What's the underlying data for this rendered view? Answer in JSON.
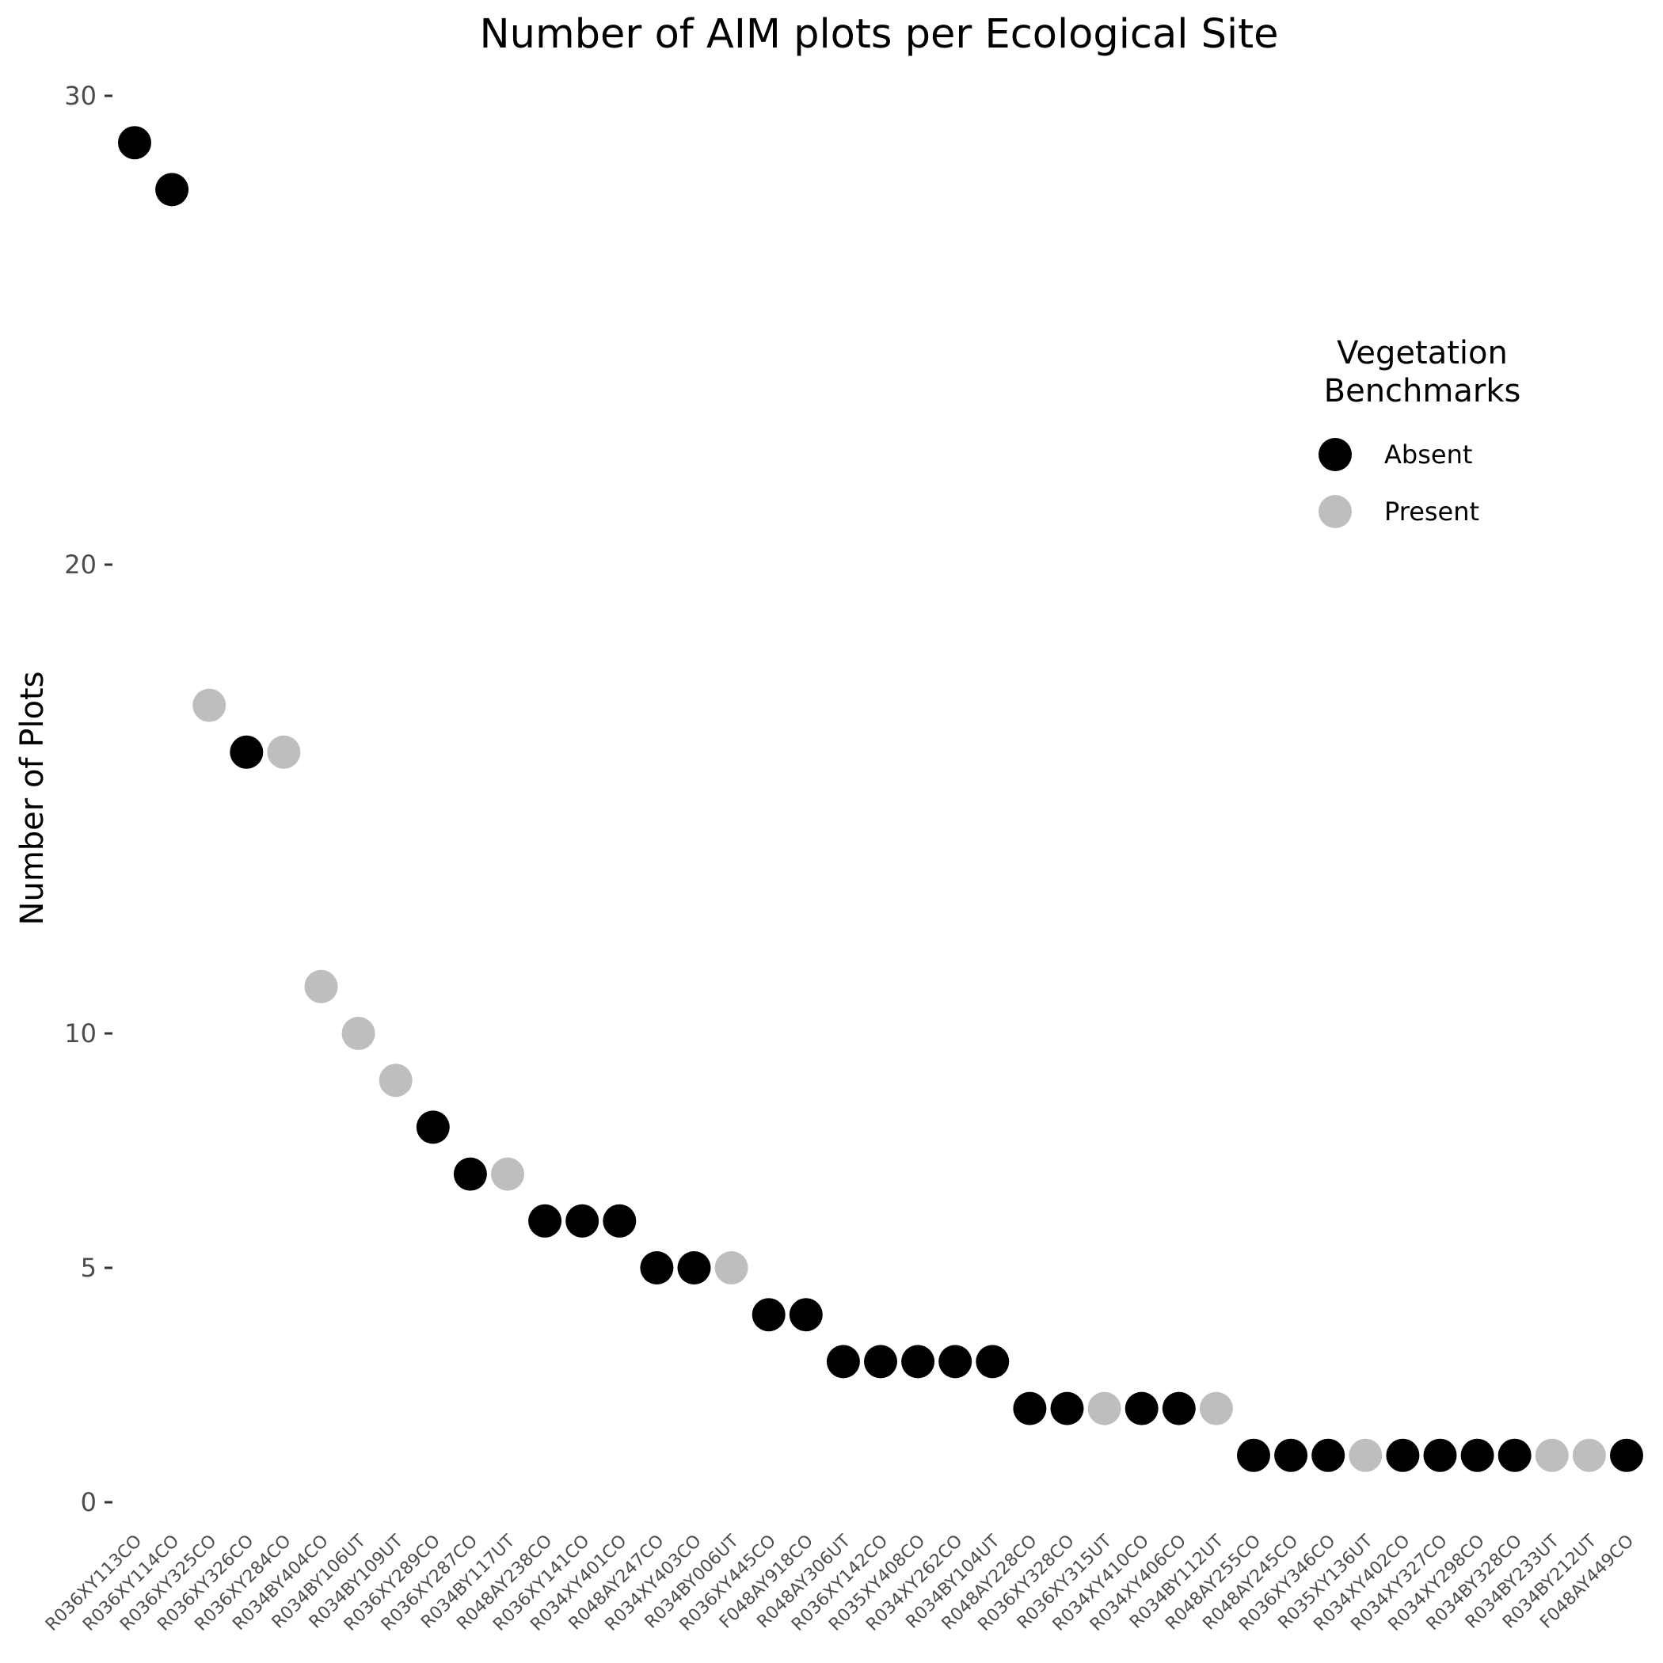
{
  "chart_data": {
    "type": "scatter",
    "title": "Number of AIM plots per Ecological Site",
    "xlabel": "",
    "ylabel": "Number of Plots",
    "ylim": [
      0,
      30
    ],
    "yticks": [
      0,
      5,
      10,
      20,
      30
    ],
    "grid": false,
    "legend": {
      "title_lines": [
        "Vegetation",
        "Benchmarks"
      ],
      "placement": "right",
      "entries": [
        {
          "name": "Absent",
          "color": "#000000"
        },
        {
          "name": "Present",
          "color": "#bebebe"
        }
      ]
    },
    "categories": [
      "R036XY113CO",
      "R036XY114CO",
      "R036XY325CO",
      "R036XY326CO",
      "R036XY284CO",
      "R034BY404CO",
      "R034BY106UT",
      "R034BY109UT",
      "R036XY289CO",
      "R036XY287CO",
      "R034BY117UT",
      "R048AY238CO",
      "R036XY141CO",
      "R034XY401CO",
      "R048AY247CO",
      "R034XY403CO",
      "R034BY006UT",
      "R036XY445CO",
      "F048AY918CO",
      "R048AY306UT",
      "R036XY142CO",
      "R035XY408CO",
      "R034XY262CO",
      "R034BY104UT",
      "R048AY228CO",
      "R036XY328CO",
      "R036XY315UT",
      "R034XY410CO",
      "R034XY406CO",
      "R034BY112UT",
      "R048AY255CO",
      "R048AY245CO",
      "R036XY346CO",
      "R035XY136UT",
      "R034XY402CO",
      "R034XY327CO",
      "R034XY298CO",
      "R034BY328CO",
      "R034BY233UT",
      "R034BY212UT",
      "F048AY449CO"
    ],
    "values": [
      29,
      28,
      17,
      16,
      16,
      11,
      10,
      9,
      8,
      7,
      7,
      6,
      6,
      6,
      5,
      5,
      5,
      4,
      4,
      3,
      3,
      3,
      3,
      3,
      2,
      2,
      2,
      2,
      2,
      2,
      1,
      1,
      1,
      1,
      1,
      1,
      1,
      1,
      1,
      1,
      1
    ],
    "group": [
      "Absent",
      "Absent",
      "Present",
      "Absent",
      "Present",
      "Present",
      "Present",
      "Present",
      "Absent",
      "Absent",
      "Present",
      "Absent",
      "Absent",
      "Absent",
      "Absent",
      "Absent",
      "Present",
      "Absent",
      "Absent",
      "Absent",
      "Absent",
      "Absent",
      "Absent",
      "Absent",
      "Absent",
      "Absent",
      "Present",
      "Absent",
      "Absent",
      "Present",
      "Absent",
      "Absent",
      "Absent",
      "Present",
      "Absent",
      "Absent",
      "Absent",
      "Absent",
      "Present",
      "Present",
      "Absent"
    ]
  }
}
